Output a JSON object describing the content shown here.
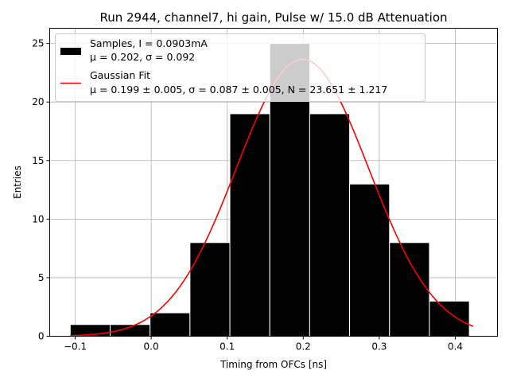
{
  "chart_data": {
    "type": "bar",
    "title": "Run 2944, channel7, hi gain, Pulse w/ 15.0 dB Attenuation",
    "xlabel": "Timing from OFCs [ns]",
    "ylabel": "Entries",
    "xlim": [
      -0.1335,
      0.4555
    ],
    "ylim": [
      0,
      26.3
    ],
    "grid": true,
    "legend_position": "top-left",
    "xticks": [
      -0.1,
      0.0,
      0.1,
      0.2,
      0.3,
      0.4
    ],
    "xtick_labels": [
      "−0.1",
      "0.0",
      "0.1",
      "0.2",
      "0.3",
      "0.4"
    ],
    "yticks": [
      0,
      5,
      10,
      15,
      20,
      25
    ],
    "ytick_labels": [
      "0",
      "5",
      "10",
      "15",
      "20",
      "25"
    ],
    "histogram": {
      "name": "Samples, I = 0.0903mA",
      "stats_label": "μ = 0.202, σ = 0.092",
      "color": "#000000",
      "edge_color": "#ffffff",
      "bin_edges": [
        -0.1065,
        -0.054,
        -0.0015,
        0.051,
        0.1035,
        0.156,
        0.2085,
        0.261,
        0.3135,
        0.366,
        0.4185
      ],
      "bin_width": 0.0525,
      "counts": [
        1,
        1,
        2,
        8,
        19,
        25,
        19,
        13,
        8,
        3
      ]
    },
    "fit": {
      "name": "Gaussian Fit",
      "params_label": "μ = 0.199 ± 0.005, σ = 0.087 ± 0.005, N = 23.651 ± 1.217",
      "mu": 0.199,
      "sigma": 0.087,
      "N": 23.651,
      "x_range": [
        -0.1065,
        0.4235
      ],
      "color": "#ff0000"
    }
  }
}
